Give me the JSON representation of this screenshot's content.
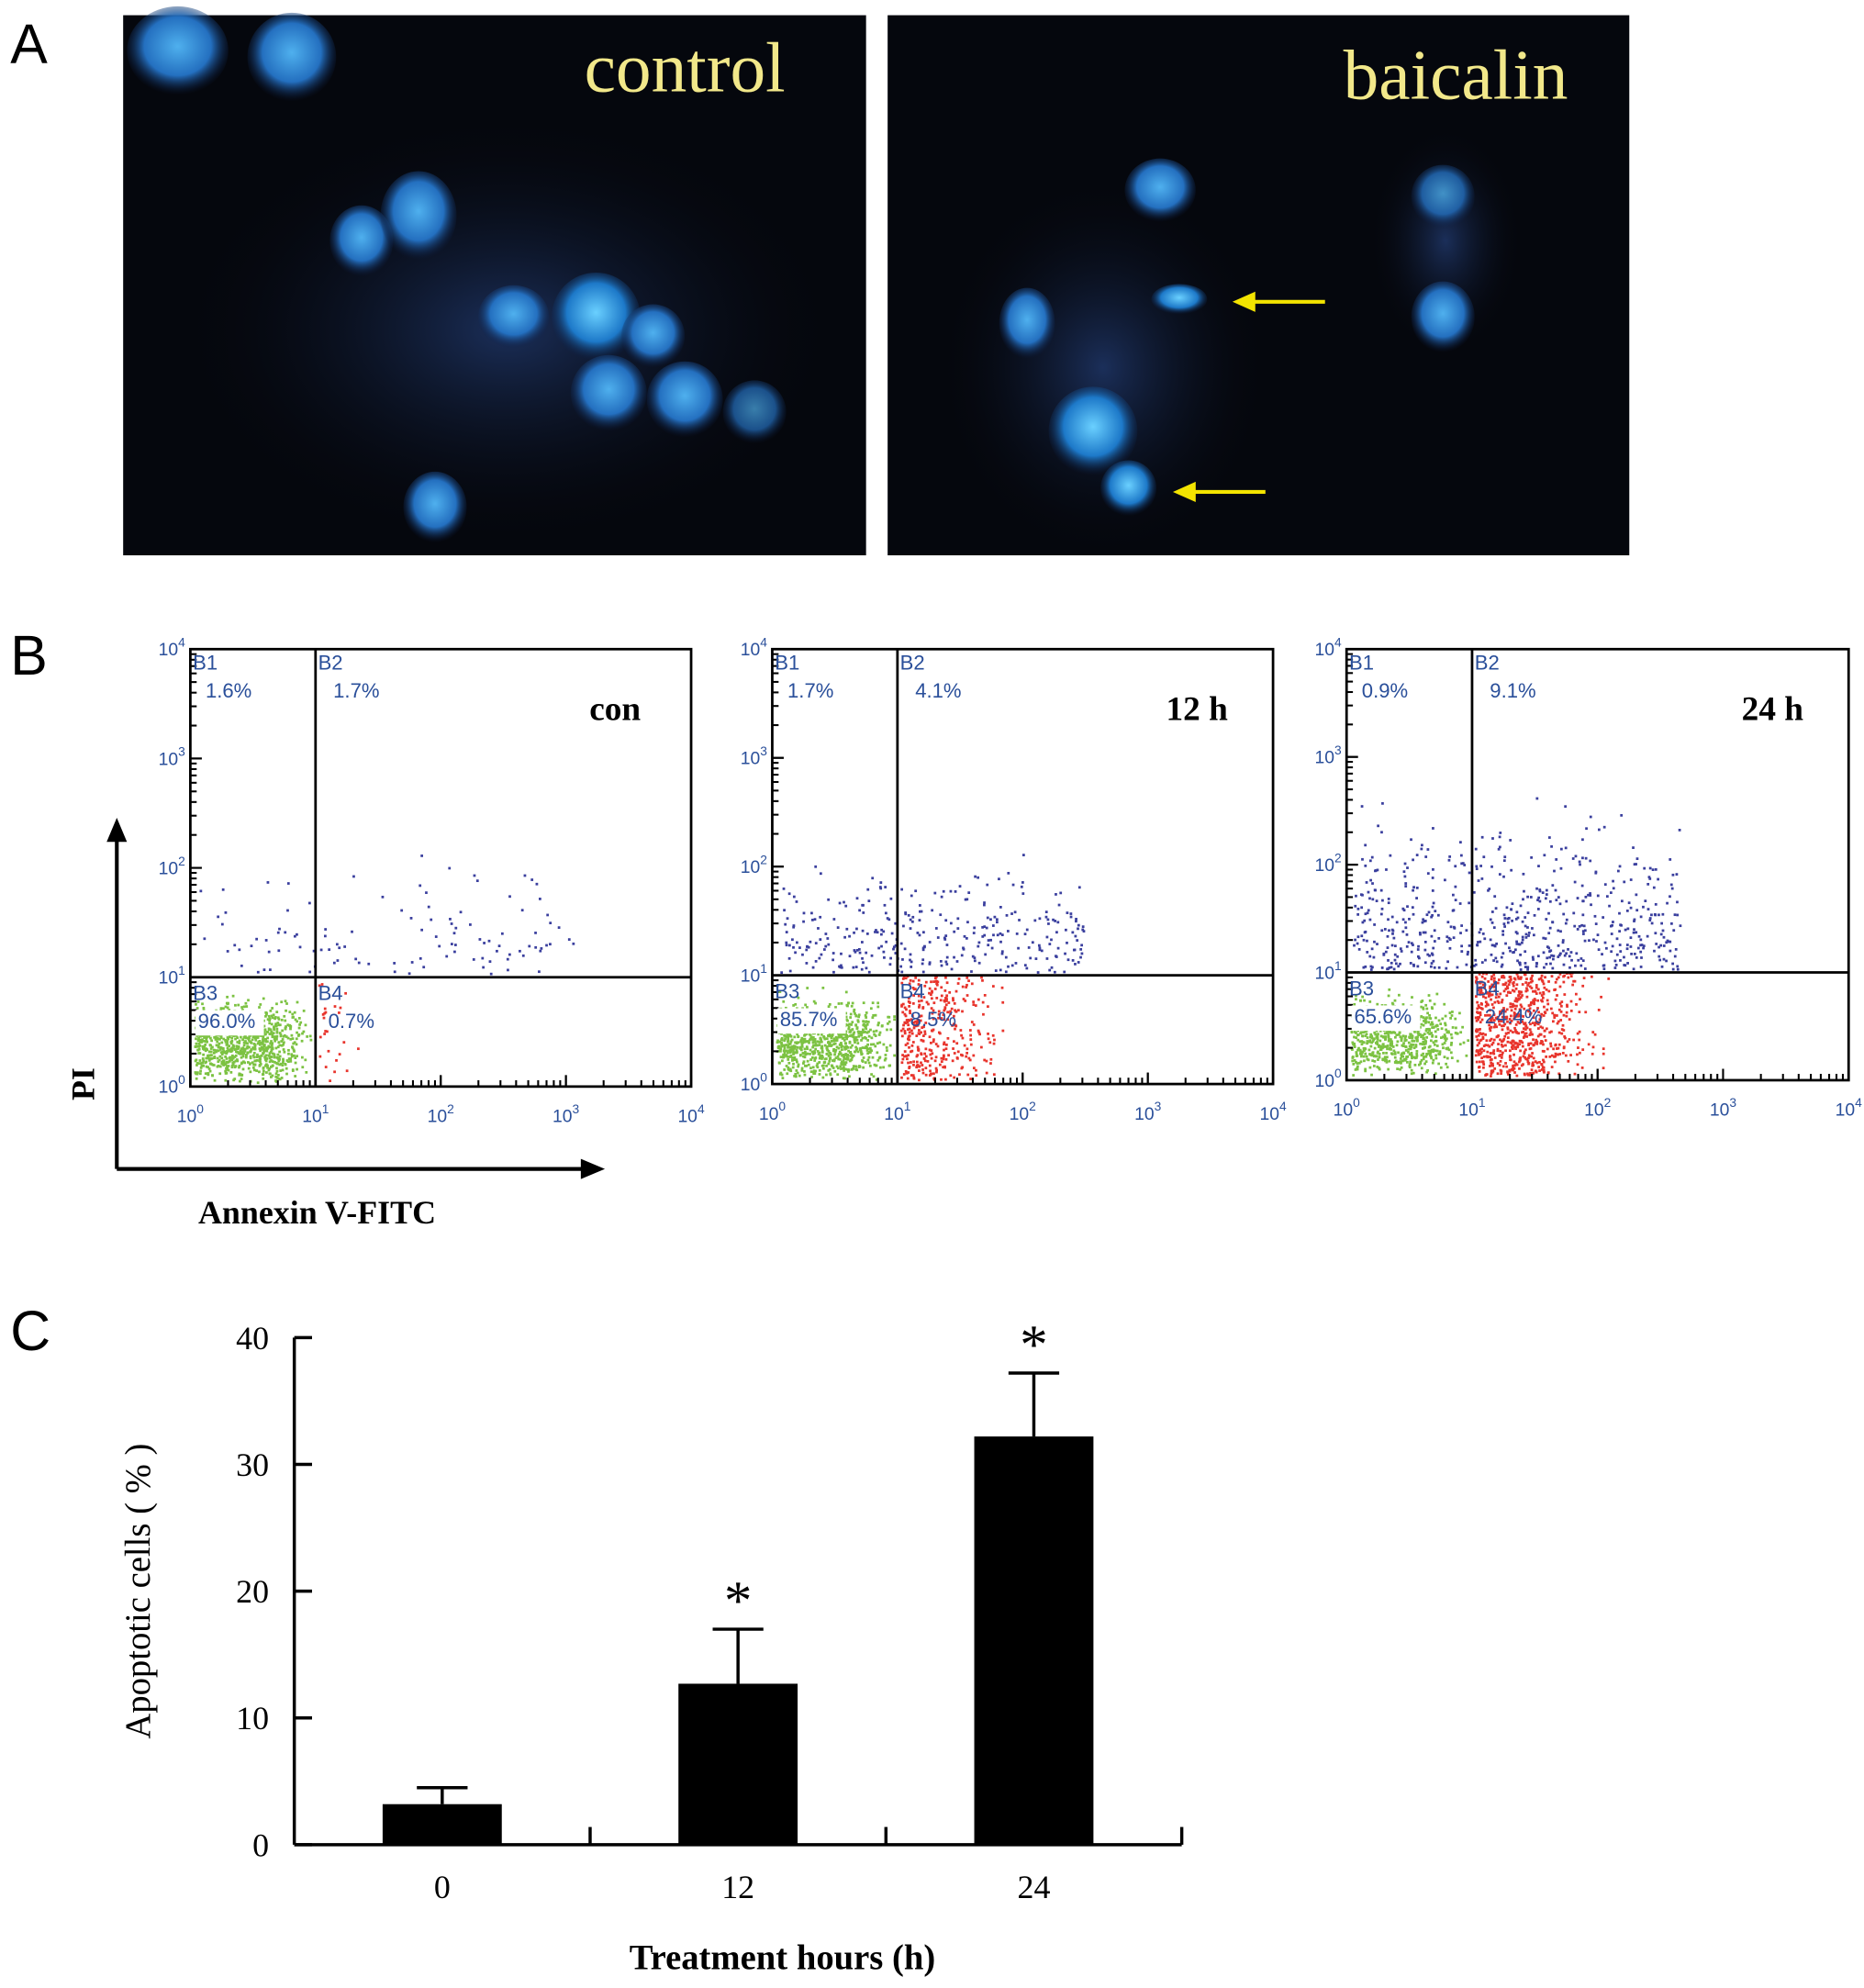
{
  "panel_labels": [
    "A",
    "B",
    "C"
  ],
  "panel_a": {
    "images": [
      {
        "label": "control"
      },
      {
        "label": "baicalin"
      }
    ]
  },
  "panel_b": {
    "y_axis_label": "PI",
    "x_axis_label": "Annexin V-FITC",
    "tick_base": "10",
    "tick_exponents": [
      "0",
      "1",
      "2",
      "3",
      "4"
    ],
    "plots": [
      {
        "label": "con",
        "quadrants": [
          {
            "name": "B1",
            "value": "1.6%"
          },
          {
            "name": "B2",
            "value": "1.7%"
          },
          {
            "name": "B3",
            "value": "96.0%"
          },
          {
            "name": "B4",
            "value": "0.7%"
          }
        ]
      },
      {
        "label": "12 h",
        "quadrants": [
          {
            "name": "B1",
            "value": "1.7%"
          },
          {
            "name": "B2",
            "value": "4.1%"
          },
          {
            "name": "B3",
            "value": "85.7%"
          },
          {
            "name": "B4",
            "value": "8.5%"
          }
        ]
      },
      {
        "label": "24 h",
        "quadrants": [
          {
            "name": "B1",
            "value": "0.9%"
          },
          {
            "name": "B2",
            "value": "9.1%"
          },
          {
            "name": "B3",
            "value": "65.6%"
          },
          {
            "name": "B4",
            "value": "24.4%"
          }
        ]
      }
    ]
  },
  "chart_data": {
    "type": "bar",
    "x_label": "Treatment hours (h)",
    "y_label": "Apoptotic cells ( % )",
    "categories": [
      "0",
      "12",
      "24"
    ],
    "values": [
      3.2,
      12.7,
      32.2
    ],
    "errors": [
      1.3,
      4.3,
      5.0
    ],
    "annotations": [
      null,
      "*",
      "*"
    ],
    "color": "#000000",
    "ylim": [
      0,
      40
    ],
    "yticks": [
      0,
      10,
      20,
      30,
      40
    ]
  }
}
